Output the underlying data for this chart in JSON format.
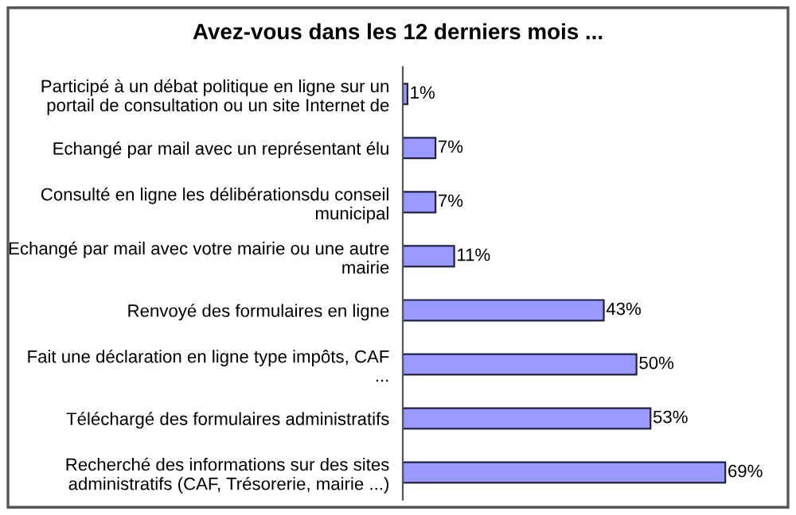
{
  "chart_data": {
    "type": "bar",
    "orientation": "horizontal",
    "title": "Avez-vous dans les 12 derniers mois ...",
    "categories": [
      "Participé à un débat politique en ligne sur un portail de consultation ou un site Internet de",
      "Echangé par mail avec un représentant élu",
      "Consulté en ligne les délibérationsdu conseil municipal",
      "Echangé par mail avec votre mairie ou une autre mairie",
      "Renvoyé des formulaires en ligne",
      "Fait une déclaration en ligne type impôts, CAF ...",
      "Téléchargé des formulaires administratifs",
      "Recherché des informations sur des sites administratifs (CAF, Trésorerie, mairie ...)"
    ],
    "values": [
      1,
      7,
      7,
      11,
      43,
      50,
      53,
      69
    ],
    "value_labels": [
      "1%",
      "7%",
      "7%",
      "11%",
      "43%",
      "50%",
      "53%",
      "69%"
    ],
    "color": "#9999ff",
    "grid": false,
    "legend": false
  }
}
